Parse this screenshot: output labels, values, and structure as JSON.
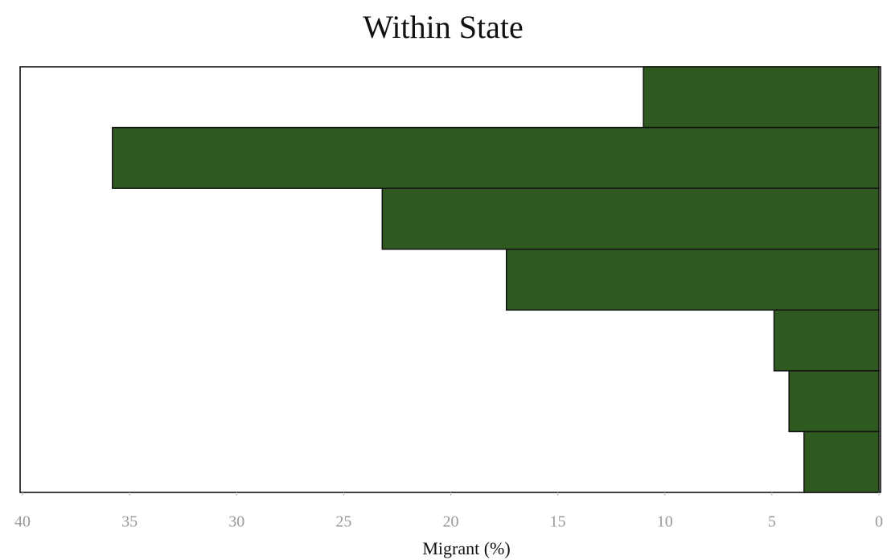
{
  "chart_data": {
    "type": "barh",
    "title": "Within State",
    "xlabel": "Migrant (%)",
    "categories": [
      null,
      null,
      null,
      null,
      null,
      null,
      null
    ],
    "values": [
      11,
      35.8,
      23.2,
      17.4,
      4.9,
      4.2,
      3.5
    ],
    "color": "#2f5a1f",
    "xlim": [
      40,
      0
    ],
    "xticks": [
      40,
      35,
      30,
      25,
      20,
      15,
      10,
      5,
      0
    ],
    "grid": false
  }
}
